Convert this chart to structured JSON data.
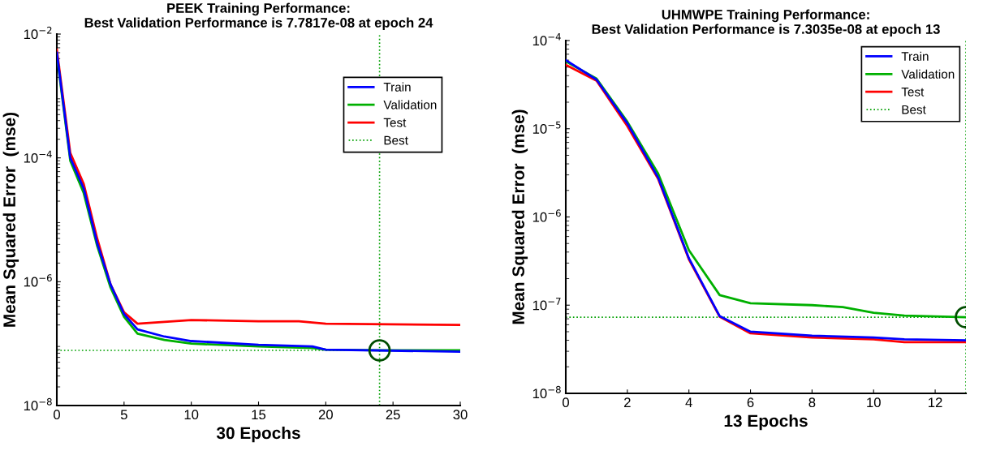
{
  "chart_data": [
    {
      "type": "line",
      "title": "PEEK Training Performance:\nBest Validation Performance is 7.7817e-08 at epoch 24",
      "xlabel": "30 Epochs",
      "ylabel": "Mean Squared Error  (mse)",
      "log": "y",
      "legend": "top right",
      "grid": false,
      "line_style": "solid",
      "xlim": [
        0,
        30
      ],
      "xticks": [
        0,
        5,
        10,
        15,
        20,
        25,
        30
      ],
      "ylim": [
        1e-08,
        0.01
      ],
      "yticks": [
        {
          "value": 1e-08,
          "label": "10$^{−8}$"
        },
        {
          "value": 1e-06,
          "label": "10$^{−6}$"
        },
        {
          "value": 0.0001,
          "label": "10$^{−4}$"
        },
        {
          "value": 0.01,
          "label": "10$^{−2}$"
        }
      ],
      "series": [
        {
          "name": "Train",
          "color": "#0000ff",
          "x": [
            0,
            1,
            2,
            3,
            4,
            5,
            6,
            8,
            10,
            15,
            19,
            20,
            30
          ],
          "values": [
            0.005,
            0.0001,
            3.2e-05,
            4.2e-06,
            9e-07,
            3e-07,
            1.7e-07,
            1.3e-07,
            1.1e-07,
            9.6e-08,
            9e-08,
            8e-08,
            7.4e-08
          ]
        },
        {
          "name": "Validation",
          "color": "#00b000",
          "x": [
            0,
            1,
            2,
            3,
            4,
            5,
            6,
            8,
            10,
            15,
            19,
            20,
            24,
            30
          ],
          "values": [
            0.0046,
            9e-05,
            2.7e-05,
            3.8e-06,
            8e-07,
            2.7e-07,
            1.45e-07,
            1.15e-07,
            1e-07,
            9e-08,
            8.5e-08,
            8e-08,
            7.7817e-08,
            7.8e-08
          ]
        },
        {
          "name": "Test",
          "color": "#ff0000",
          "x": [
            0,
            1,
            2,
            3,
            4,
            5,
            6,
            10,
            15,
            18,
            20,
            30
          ],
          "values": [
            0.0056,
            0.00012,
            3.8e-05,
            5e-06,
            9e-07,
            3.2e-07,
            2.1e-07,
            2.4e-07,
            2.3e-07,
            2.3e-07,
            2.1e-07,
            2e-07
          ]
        },
        {
          "type": "scatter",
          "marker": "circle",
          "color": "#004d00",
          "x": [
            24
          ],
          "values": [
            7.7817e-08
          ]
        }
      ],
      "ref_lines": [
        {
          "axis": "y",
          "value": 7.7817e-08,
          "label": "Best",
          "color": "#00a000",
          "line_style": "dotted"
        },
        {
          "axis": "x",
          "value": 24,
          "color": "#00a000",
          "line_style": "dotted"
        }
      ]
    },
    {
      "type": "line",
      "title": "UHMWPE Training Performance:\nBest Validation Performance is 7.3035e-08 at epoch 13",
      "xlabel": "13 Epochs",
      "ylabel": "Mean Squared Error  (mse)",
      "log": "y",
      "legend": "top right",
      "grid": false,
      "line_style": "solid",
      "xlim": [
        0,
        13
      ],
      "xticks": [
        0,
        2,
        4,
        6,
        8,
        10,
        12
      ],
      "ylim": [
        1e-08,
        0.0001
      ],
      "yticks": [
        {
          "value": 1e-08,
          "label": "10$^{−8}$"
        },
        {
          "value": 1e-07,
          "label": "10$^{−7}$"
        },
        {
          "value": 1e-06,
          "label": "10$^{−6}$"
        },
        {
          "value": 1e-05,
          "label": "10$^{−5}$"
        },
        {
          "value": 0.0001,
          "label": "10$^{−4}$"
        }
      ],
      "series": [
        {
          "name": "Train",
          "color": "#0000ff",
          "x": [
            0,
            1,
            2,
            3,
            4,
            5,
            6,
            8,
            10,
            11,
            13
          ],
          "values": [
            6e-05,
            3.6e-05,
            1.15e-05,
            2.8e-06,
            3.4e-07,
            7.5e-08,
            5e-08,
            4.5e-08,
            4.3e-08,
            4.1e-08,
            4e-08
          ]
        },
        {
          "name": "Validation",
          "color": "#00b000",
          "x": [
            0,
            1,
            2,
            3,
            4,
            5,
            6,
            8,
            9,
            10,
            11,
            13
          ],
          "values": [
            5.8e-05,
            3.7e-05,
            1.2e-05,
            3.1e-06,
            4.2e-07,
            1.3e-07,
            1.05e-07,
            1e-07,
            9.5e-08,
            8.2e-08,
            7.6e-08,
            7.3035e-08
          ]
        },
        {
          "name": "Test",
          "color": "#ff0000",
          "x": [
            0,
            1,
            2,
            3,
            4,
            5,
            6,
            8,
            10,
            11,
            13
          ],
          "values": [
            5.3e-05,
            3.5e-05,
            1.07e-05,
            2.7e-06,
            3.3e-07,
            7.4e-08,
            4.8e-08,
            4.3e-08,
            4.1e-08,
            3.8e-08,
            3.8e-08
          ]
        },
        {
          "type": "scatter",
          "marker": "circle",
          "color": "#004d00",
          "x": [
            13
          ],
          "values": [
            7.3035e-08
          ]
        }
      ],
      "ref_lines": [
        {
          "axis": "y",
          "value": 7.3035e-08,
          "label": "Best",
          "color": "#00a000",
          "line_style": "dotted"
        },
        {
          "axis": "x",
          "value": 13,
          "color": "#00a000",
          "line_style": "dotted"
        }
      ]
    }
  ]
}
